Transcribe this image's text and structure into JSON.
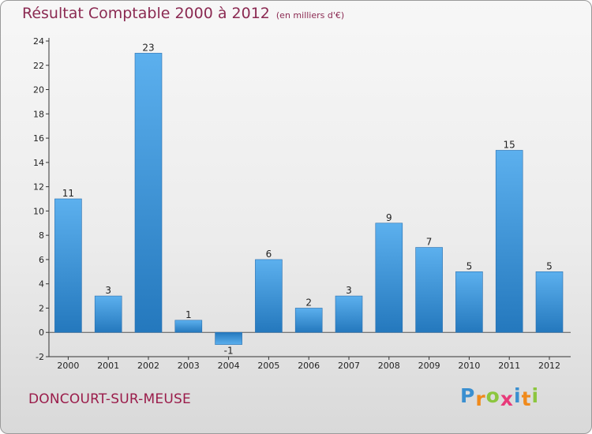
{
  "chart_data": {
    "type": "bar",
    "title": "Résultat Comptable 2000 à 2012",
    "subtitle": "(en milliers d'€)",
    "categories": [
      "2000",
      "2001",
      "2002",
      "2003",
      "2004",
      "2005",
      "2006",
      "2007",
      "2008",
      "2009",
      "2010",
      "2011",
      "2012"
    ],
    "values": [
      11,
      3,
      23,
      1,
      -1,
      6,
      2,
      3,
      9,
      7,
      5,
      15,
      5
    ],
    "value_labels": [
      "11",
      "3",
      "23",
      "1",
      "-1",
      "6",
      "2",
      "3",
      "9",
      "7",
      "5",
      "15",
      "5"
    ],
    "ylim": [
      -2,
      24
    ],
    "yticks": [
      -2,
      0,
      2,
      4,
      6,
      8,
      10,
      12,
      14,
      16,
      18,
      20,
      22,
      24
    ],
    "xlabel": "",
    "ylabel": "",
    "grid": false,
    "bar_color": "#3d8fd6",
    "legend": "none"
  },
  "footer": {
    "place": "DONCOURT-SUR-MEUSE",
    "brand": "Proxiti",
    "brand_letters": [
      {
        "ch": "P",
        "color": "#3a8fd0"
      },
      {
        "ch": "r",
        "color": "#f08a1c"
      },
      {
        "ch": "o",
        "color": "#8cc63f"
      },
      {
        "ch": "x",
        "color": "#e83a7a"
      },
      {
        "ch": "i",
        "color": "#3a8fd0"
      },
      {
        "ch": "t",
        "color": "#f08a1c"
      },
      {
        "ch": "i",
        "color": "#8cc63f"
      }
    ]
  },
  "colors": {
    "title": "#8b2a52",
    "place": "#9a1c4a"
  }
}
